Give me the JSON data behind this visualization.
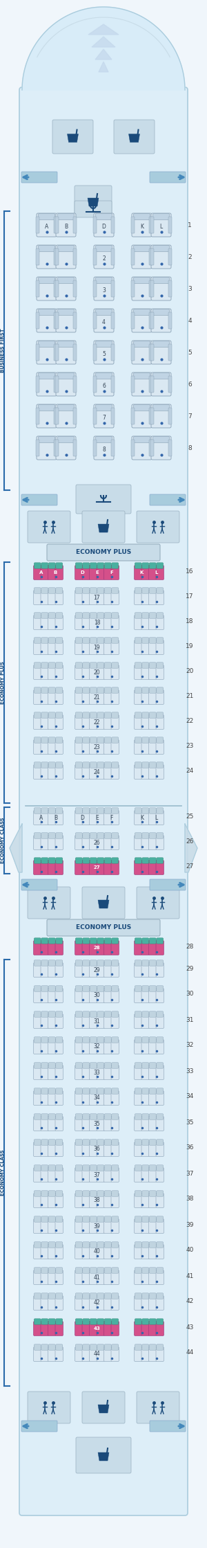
{
  "bg_outer": "#f0f6fb",
  "bg_fuselage": "#ddeef8",
  "bg_section": "#e4f0f8",
  "seat_biz_fill": "#dae8f2",
  "seat_biz_dark": "#c0d4e4",
  "seat_eco_fill": "#dae8f2",
  "seat_eco_dark": "#c0d4e0",
  "seat_exit_fill": "#d4508a",
  "seat_exit_dark": "#b03070",
  "seat_exit_teal": "#4ab0a0",
  "icon_box_fill": "#c8dce8",
  "icon_color": "#1a4a7a",
  "arrow_color": "#4488bb",
  "row_num_color": "#444444",
  "label_color": "#1a4a7a",
  "fuselage_edge": "#aaccdd",
  "section_line": "#99bbcc",
  "door_bar_fill": "#a8ccdd",
  "door_bar_edge": "#88aacc",
  "wing_fill": "#c8dce8",
  "nose_fill": "#d8ecf8",
  "nose_edge": "#aaccdd",
  "nose_inner": "#e8f4fc",
  "biz_rows": [
    1,
    2,
    3,
    4,
    5,
    6,
    7,
    8
  ],
  "ep1_rows": [
    16,
    17,
    18,
    19,
    20,
    21,
    22,
    23,
    24
  ],
  "ec1_rows": [
    25,
    26,
    27
  ],
  "ec1_exit_rows": [
    27
  ],
  "ep2_rows": [
    28
  ],
  "ec2_rows": [
    29,
    30,
    31,
    32,
    33,
    34,
    35,
    36,
    37,
    38,
    39,
    40,
    41,
    42,
    43,
    44
  ],
  "ec2_exit_rows": [
    43
  ],
  "seat_letters_biz": [
    "A",
    "B",
    "D",
    "K",
    "L"
  ],
  "seat_letters_eco": [
    "A",
    "B",
    "D",
    "E",
    "F",
    "K",
    "L"
  ],
  "section_labels": {
    "business_first": "BUSINESS FIRST",
    "economy_plus": "ECONOMY PLUS",
    "economy_class": "ECONOMY CLASS"
  }
}
